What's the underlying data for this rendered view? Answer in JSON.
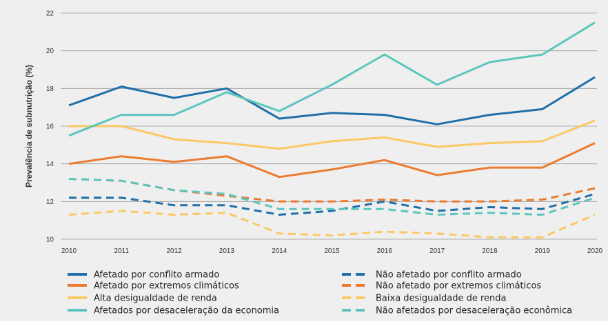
{
  "chart_data": {
    "type": "line",
    "title": "",
    "xlabel": "",
    "ylabel": "Prevalência de subnutrição (%)",
    "ylim": [
      10,
      22
    ],
    "yticks": [
      10,
      12,
      14,
      16,
      18,
      20,
      22
    ],
    "grid": "horizontal",
    "legend_placement": "bottom",
    "x": [
      "2010",
      "2011",
      "2012",
      "2013",
      "2014",
      "2015",
      "2016",
      "2017",
      "2018",
      "2019",
      "2020"
    ],
    "series": [
      {
        "name": "Afetado por conflito armado",
        "color": "#1f6fa8",
        "dashed": false,
        "values": [
          17.1,
          18.1,
          17.5,
          18.0,
          16.4,
          16.7,
          16.6,
          16.1,
          16.6,
          16.9,
          18.6
        ]
      },
      {
        "name": "Afetado por extremos climáticos",
        "color": "#ec7b30",
        "dashed": false,
        "values": [
          14.0,
          14.4,
          14.1,
          14.4,
          13.3,
          13.7,
          14.2,
          13.4,
          13.8,
          13.8,
          15.1
        ]
      },
      {
        "name": "Alta desigualdade de renda",
        "color": "#fbc865",
        "dashed": false,
        "values": [
          16.0,
          16.0,
          15.3,
          15.1,
          14.8,
          15.2,
          15.4,
          14.9,
          15.1,
          15.2,
          16.3
        ]
      },
      {
        "name": "Afetados por desaceleração da economia",
        "color": "#5cc6bd",
        "dashed": false,
        "values": [
          15.5,
          16.6,
          16.6,
          17.8,
          16.8,
          18.2,
          19.8,
          18.2,
          19.4,
          19.8,
          21.5
        ]
      },
      {
        "name": "Não afetado por conflito armado",
        "color": "#1f6fa8",
        "dashed": true,
        "values": [
          12.2,
          12.2,
          11.8,
          11.8,
          11.3,
          11.5,
          12.0,
          11.5,
          11.7,
          11.6,
          12.4
        ]
      },
      {
        "name": "Não afetado por extremos climáticos",
        "color": "#ec7b30",
        "dashed": true,
        "values": [
          13.2,
          13.1,
          12.6,
          12.3,
          12.0,
          12.0,
          12.1,
          12.0,
          12.0,
          12.1,
          12.7
        ]
      },
      {
        "name": "Baixa desigualdade de renda",
        "color": "#fbc865",
        "dashed": true,
        "values": [
          11.3,
          11.5,
          11.3,
          11.4,
          10.3,
          10.2,
          10.4,
          10.3,
          10.1,
          10.1,
          11.3
        ]
      },
      {
        "name": "Não afetados por desaceleração econômica",
        "color": "#5cc6bd",
        "dashed": true,
        "values": [
          13.2,
          13.1,
          12.6,
          12.4,
          11.6,
          11.6,
          11.6,
          11.3,
          11.4,
          11.3,
          12.2
        ]
      }
    ]
  }
}
